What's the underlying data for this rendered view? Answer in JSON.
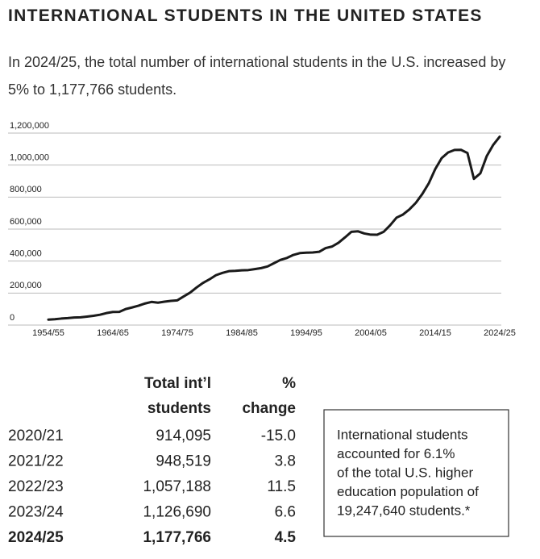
{
  "chart_data": {
    "type": "line",
    "title": "INTERNATIONAL STUDENTS IN THE UNITED STATES",
    "subtitle": "In 2024/25, the total number of international students in the U.S. increased by 5% to 1,177,766 students.",
    "categories": [
      "1954/55",
      null,
      null,
      null,
      null,
      null,
      null,
      null,
      null,
      null,
      "1964/65",
      null,
      null,
      null,
      null,
      null,
      null,
      null,
      null,
      null,
      "1974/75",
      null,
      null,
      null,
      null,
      null,
      null,
      null,
      null,
      null,
      "1984/85",
      null,
      null,
      null,
      null,
      null,
      null,
      null,
      null,
      null,
      "1994/95",
      null,
      null,
      null,
      null,
      null,
      null,
      null,
      null,
      null,
      "2004/05",
      null,
      null,
      null,
      null,
      null,
      null,
      null,
      null,
      null,
      "2014/15",
      null,
      null,
      null,
      null,
      null,
      null,
      null,
      null,
      null,
      "2024/25"
    ],
    "series": [
      {
        "color": "#1a1a1a",
        "values": [
          34232,
          36494,
          40666,
          43391,
          47245,
          48486,
          53107,
          58086,
          64705,
          74814,
          82045,
          82709,
          100262,
          110315,
          121362,
          134959,
          144708,
          140126,
          146097,
          151066,
          154580,
          179344,
          203068,
          235509,
          263938,
          286343,
          311882,
          326299,
          336985,
          338894,
          342113,
          343777,
          349609,
          356187,
          366354,
          386851,
          407529,
          419585,
          438618,
          449749,
          452653,
          453787,
          457984,
          481280,
          490933,
          514723,
          547867,
          582996,
          586323,
          572509,
          565039,
          564766,
          582984,
          623805,
          671616,
          690923,
          723277,
          764495,
          819644,
          886052,
          974926,
          1043839,
          1078822,
          1094792,
          1095299,
          1075496,
          914095,
          948519,
          1057188,
          1126690,
          1177766
        ]
      }
    ],
    "ylim": [
      0,
      1200000
    ],
    "yticks": [
      0,
      {
        "value": 200000,
        "label": "200,000"
      },
      {
        "value": 400000,
        "label": "400,000"
      },
      {
        "value": 600000,
        "label": "600,000"
      },
      {
        "value": 800000,
        "label": "800,000"
      },
      {
        "value": 1000000,
        "label": "1,000,000"
      },
      {
        "value": 1200000,
        "label": "1,200,000"
      }
    ],
    "grid": true
  },
  "table": {
    "headers": [
      [
        "Total int’l",
        "students"
      ],
      [
        "%",
        "change"
      ]
    ],
    "rows": [
      [
        "2020/21",
        "914,095",
        "-15.0"
      ],
      [
        "2021/22",
        "948,519",
        "3.8"
      ],
      [
        "2022/23",
        "1,057,188",
        "11.5"
      ],
      [
        "2023/24",
        "1,126,690",
        "6.6"
      ],
      [
        "2024/25",
        "1,177,766",
        "4.5"
      ]
    ]
  },
  "note": [
    "International students",
    "accounted for 6.1%",
    "of the total U.S. higher",
    "education population of",
    "19,247,640 students.*"
  ]
}
